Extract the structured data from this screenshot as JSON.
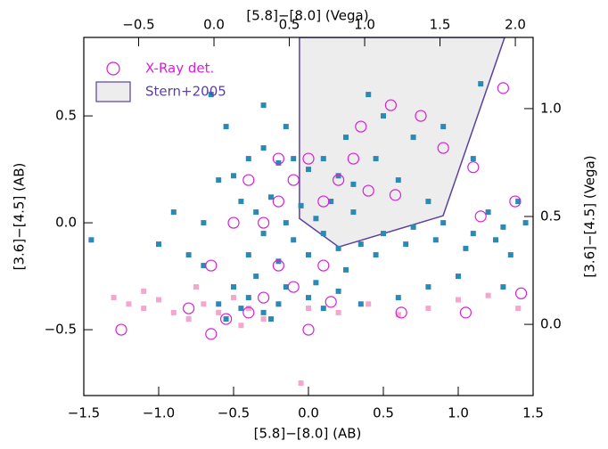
{
  "chart_data": {
    "type": "scatter",
    "xlabel": "[5.8]−[8.0] (AB)",
    "x2label": "[5.8]−[8.0] (Vega)",
    "ylabel": "[3.6]−[4.5] (AB)",
    "y2label": "[3.6]−[4.5] (Vega)",
    "xlim": [
      -1.5,
      1.5
    ],
    "ylim": [
      -0.808,
      0.867
    ],
    "x2lim": [
      -0.864,
      2.118
    ],
    "y2lim": [
      -0.33,
      1.33
    ],
    "xticks": [
      {
        "value": -1.5,
        "label": "−1.5"
      },
      {
        "value": -1,
        "label": "−1.0"
      },
      {
        "value": -0.5,
        "label": "−0.5"
      },
      {
        "value": 0,
        "label": "0.0"
      },
      0.5,
      {
        "value": 1,
        "label": "1.0"
      },
      1.5
    ],
    "yticks": [
      {
        "value": -0.5,
        "label": "−0.5"
      },
      {
        "value": 0,
        "label": "0.0"
      },
      0.5
    ],
    "x2ticks": [
      {
        "value": -0.5,
        "label": "−0.5"
      },
      {
        "value": 0,
        "label": "0.0"
      },
      0.5,
      {
        "value": 1,
        "label": "1.0"
      },
      1.5,
      {
        "value": 2,
        "label": "2.0"
      }
    ],
    "y2ticks": [
      {
        "value": 0,
        "label": "0.0"
      },
      0.5,
      {
        "value": 1,
        "label": "1.0"
      }
    ],
    "legend": "upper left",
    "region": {
      "name": "Stern+2005",
      "color": "#5b3fa0",
      "fill": "#ededed",
      "x": [
        -0.06,
        -0.06,
        0.202,
        0.899,
        1.31
      ],
      "values": [
        0.867,
        0.02,
        -0.113,
        0.033,
        0.867
      ]
    },
    "series": [
      {
        "color": "#f4a6cf",
        "marker": "square",
        "x": [
          -1.3,
          -1.2,
          -1.1,
          -1.0,
          -0.9,
          -0.8,
          -0.7,
          -0.6,
          -0.5,
          -0.4,
          -0.3,
          -0.2,
          0.0,
          0.2,
          0.4,
          0.6,
          0.8,
          1.0,
          1.2,
          1.4,
          -0.05,
          -1.1,
          -0.75,
          -0.45
        ],
        "values": [
          -0.35,
          -0.38,
          -0.4,
          -0.36,
          -0.42,
          -0.45,
          -0.38,
          -0.42,
          -0.35,
          -0.4,
          -0.45,
          -0.38,
          -0.4,
          -0.42,
          -0.38,
          -0.43,
          -0.4,
          -0.36,
          -0.34,
          -0.4,
          -0.75,
          -0.32,
          -0.3,
          -0.48
        ]
      },
      {
        "color": "#2a8ab5",
        "marker": "square",
        "x": [
          -0.6,
          -0.5,
          -0.4,
          -0.3,
          -0.2,
          -0.1,
          0.0,
          0.1,
          0.2,
          0.3,
          -0.45,
          -0.35,
          -0.25,
          -0.15,
          -0.05,
          0.05,
          0.15,
          -0.3,
          -0.1,
          0.1,
          -0.4,
          -0.2,
          0.0,
          0.2,
          0.35,
          0.5,
          0.7,
          0.9,
          1.1,
          1.3,
          -0.5,
          -0.35,
          -0.15,
          0.05,
          0.25,
          0.45,
          0.65,
          0.85,
          1.05,
          1.25,
          -0.6,
          -0.45,
          -0.3,
          -0.55,
          -0.4,
          -0.2,
          0.0,
          0.1,
          -0.25,
          0.2,
          0.5,
          0.7,
          0.9,
          0.4,
          1.2,
          1.4,
          1.45,
          1.35,
          -0.9,
          -1.0,
          -0.7,
          -0.8,
          -0.65,
          -0.3,
          0.3,
          0.45,
          0.6,
          0.8,
          -1.45,
          1.1,
          0.35,
          0.6,
          0.8,
          1.0,
          1.3,
          -0.7,
          -0.55,
          -0.15,
          0.25,
          1.15
        ],
        "values": [
          0.2,
          0.22,
          0.3,
          0.35,
          0.28,
          0.3,
          0.25,
          0.3,
          0.22,
          0.18,
          0.1,
          0.05,
          0.12,
          0.0,
          0.08,
          0.02,
          0.1,
          -0.05,
          -0.08,
          -0.05,
          -0.15,
          -0.18,
          -0.15,
          -0.12,
          -0.1,
          -0.05,
          -0.02,
          0.0,
          -0.05,
          -0.02,
          -0.3,
          -0.25,
          -0.3,
          -0.28,
          -0.22,
          -0.15,
          -0.1,
          -0.08,
          -0.12,
          -0.08,
          -0.38,
          -0.4,
          -0.42,
          -0.45,
          -0.35,
          -0.38,
          -0.35,
          -0.4,
          -0.45,
          -0.32,
          0.5,
          0.4,
          0.45,
          0.6,
          0.05,
          0.1,
          0.0,
          -0.15,
          0.05,
          -0.1,
          0.0,
          -0.15,
          0.6,
          0.55,
          0.05,
          0.3,
          0.2,
          0.1,
          -0.08,
          0.3,
          -0.38,
          -0.35,
          -0.3,
          -0.25,
          -0.3,
          -0.2,
          0.45,
          0.45,
          0.4,
          0.65
        ]
      },
      {
        "name": "X-Ray det.",
        "color": "#d81ed8",
        "marker": "circle",
        "x": [
          -1.25,
          -0.65,
          -0.8,
          -0.55,
          -0.4,
          -0.3,
          -0.2,
          -0.1,
          0.0,
          0.1,
          -0.3,
          -0.2,
          -0.1,
          0.0,
          -0.4,
          -0.2,
          0.1,
          0.2,
          0.3,
          0.35,
          0.55,
          0.75,
          1.3,
          1.1,
          0.58,
          1.15,
          1.38,
          1.42,
          1.05,
          0.62,
          -0.65,
          0.15,
          0.4,
          0.9,
          -0.5
        ],
        "values": [
          -0.5,
          -0.52,
          -0.4,
          -0.45,
          -0.42,
          -0.35,
          -0.2,
          -0.3,
          -0.5,
          -0.2,
          0.0,
          0.1,
          0.2,
          0.3,
          0.2,
          0.3,
          0.1,
          0.2,
          0.3,
          0.45,
          0.55,
          0.5,
          0.63,
          0.26,
          0.13,
          0.03,
          0.1,
          -0.33,
          -0.42,
          -0.42,
          -0.2,
          -0.37,
          0.15,
          0.35,
          0.0
        ]
      }
    ]
  }
}
